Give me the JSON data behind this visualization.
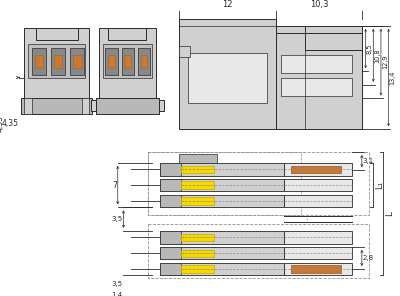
{
  "bg_color": "#ffffff",
  "line_color": "#2a2a2a",
  "gray_fill": "#d0d0d0",
  "gray_light": "#e8e8e8",
  "gray_mid": "#b8b8b8",
  "gray_dark": "#909090",
  "yellow_fill": "#f5d800",
  "orange_fill": "#c87832",
  "dim_color": "#2a2a2a",
  "dims_top": {
    "d12": "12",
    "d103": "10,3",
    "d85": "8,5",
    "d108": "10,8",
    "d129": "12,9",
    "d134": "13,4"
  },
  "dims_left": {
    "d435": "4,35"
  },
  "dims_bottom": {
    "d7": "7",
    "d35a": "3,5",
    "d35b": "3,5",
    "d14": "1,4",
    "d31": "3,1",
    "d28": "2,8",
    "L1": "L₁",
    "L": "L"
  }
}
